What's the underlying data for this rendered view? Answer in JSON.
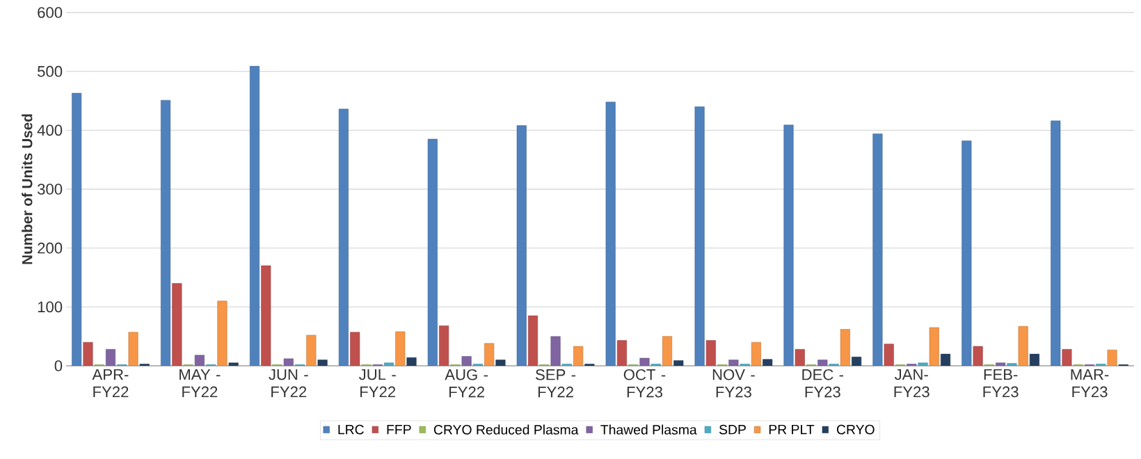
{
  "chart_data": {
    "type": "bar",
    "ylabel": "Number of Units Used",
    "categories": [
      "APR- FY22",
      "MAY - FY22",
      "JUN - FY22",
      "JUL - FY22",
      "AUG - FY22",
      "SEP - FY22",
      "OCT - FY23",
      "NOV - FY23",
      "DEC - FY23",
      "JAN- FY23",
      "FEB- FY23",
      "MAR- FY23"
    ],
    "series": [
      {
        "name": "LRC",
        "color": "#4f81bd",
        "values": [
          463,
          451,
          509,
          436,
          385,
          408,
          448,
          440,
          409,
          394,
          382,
          416
        ]
      },
      {
        "name": "FFP",
        "color": "#c0504d",
        "values": [
          40,
          140,
          170,
          57,
          68,
          85,
          43,
          43,
          28,
          37,
          33,
          28
        ]
      },
      {
        "name": "CRYO Reduced Plasma",
        "color": "#9bbb59",
        "values": [
          2,
          2,
          2,
          2,
          2,
          2,
          2,
          2,
          2,
          2,
          2,
          2
        ]
      },
      {
        "name": "Thawed Plasma",
        "color": "#8064a2",
        "values": [
          28,
          18,
          12,
          2,
          16,
          50,
          13,
          10,
          10,
          3,
          5,
          2
        ]
      },
      {
        "name": "SDP",
        "color": "#4bacc6",
        "values": [
          2,
          2,
          2,
          5,
          3,
          3,
          3,
          3,
          3,
          5,
          4,
          3
        ]
      },
      {
        "name": "PR PLT",
        "color": "#f79646",
        "values": [
          57,
          110,
          52,
          58,
          38,
          33,
          50,
          40,
          62,
          65,
          67,
          27
        ]
      },
      {
        "name": "CRYO",
        "color": "#243f60",
        "values": [
          3,
          5,
          10,
          14,
          10,
          3,
          9,
          11,
          15,
          20,
          20,
          2
        ]
      }
    ],
    "ylim": [
      0,
      600
    ],
    "yticks": [
      0,
      100,
      200,
      300,
      400,
      500,
      600
    ],
    "grid": "y",
    "legend": "bottom"
  }
}
